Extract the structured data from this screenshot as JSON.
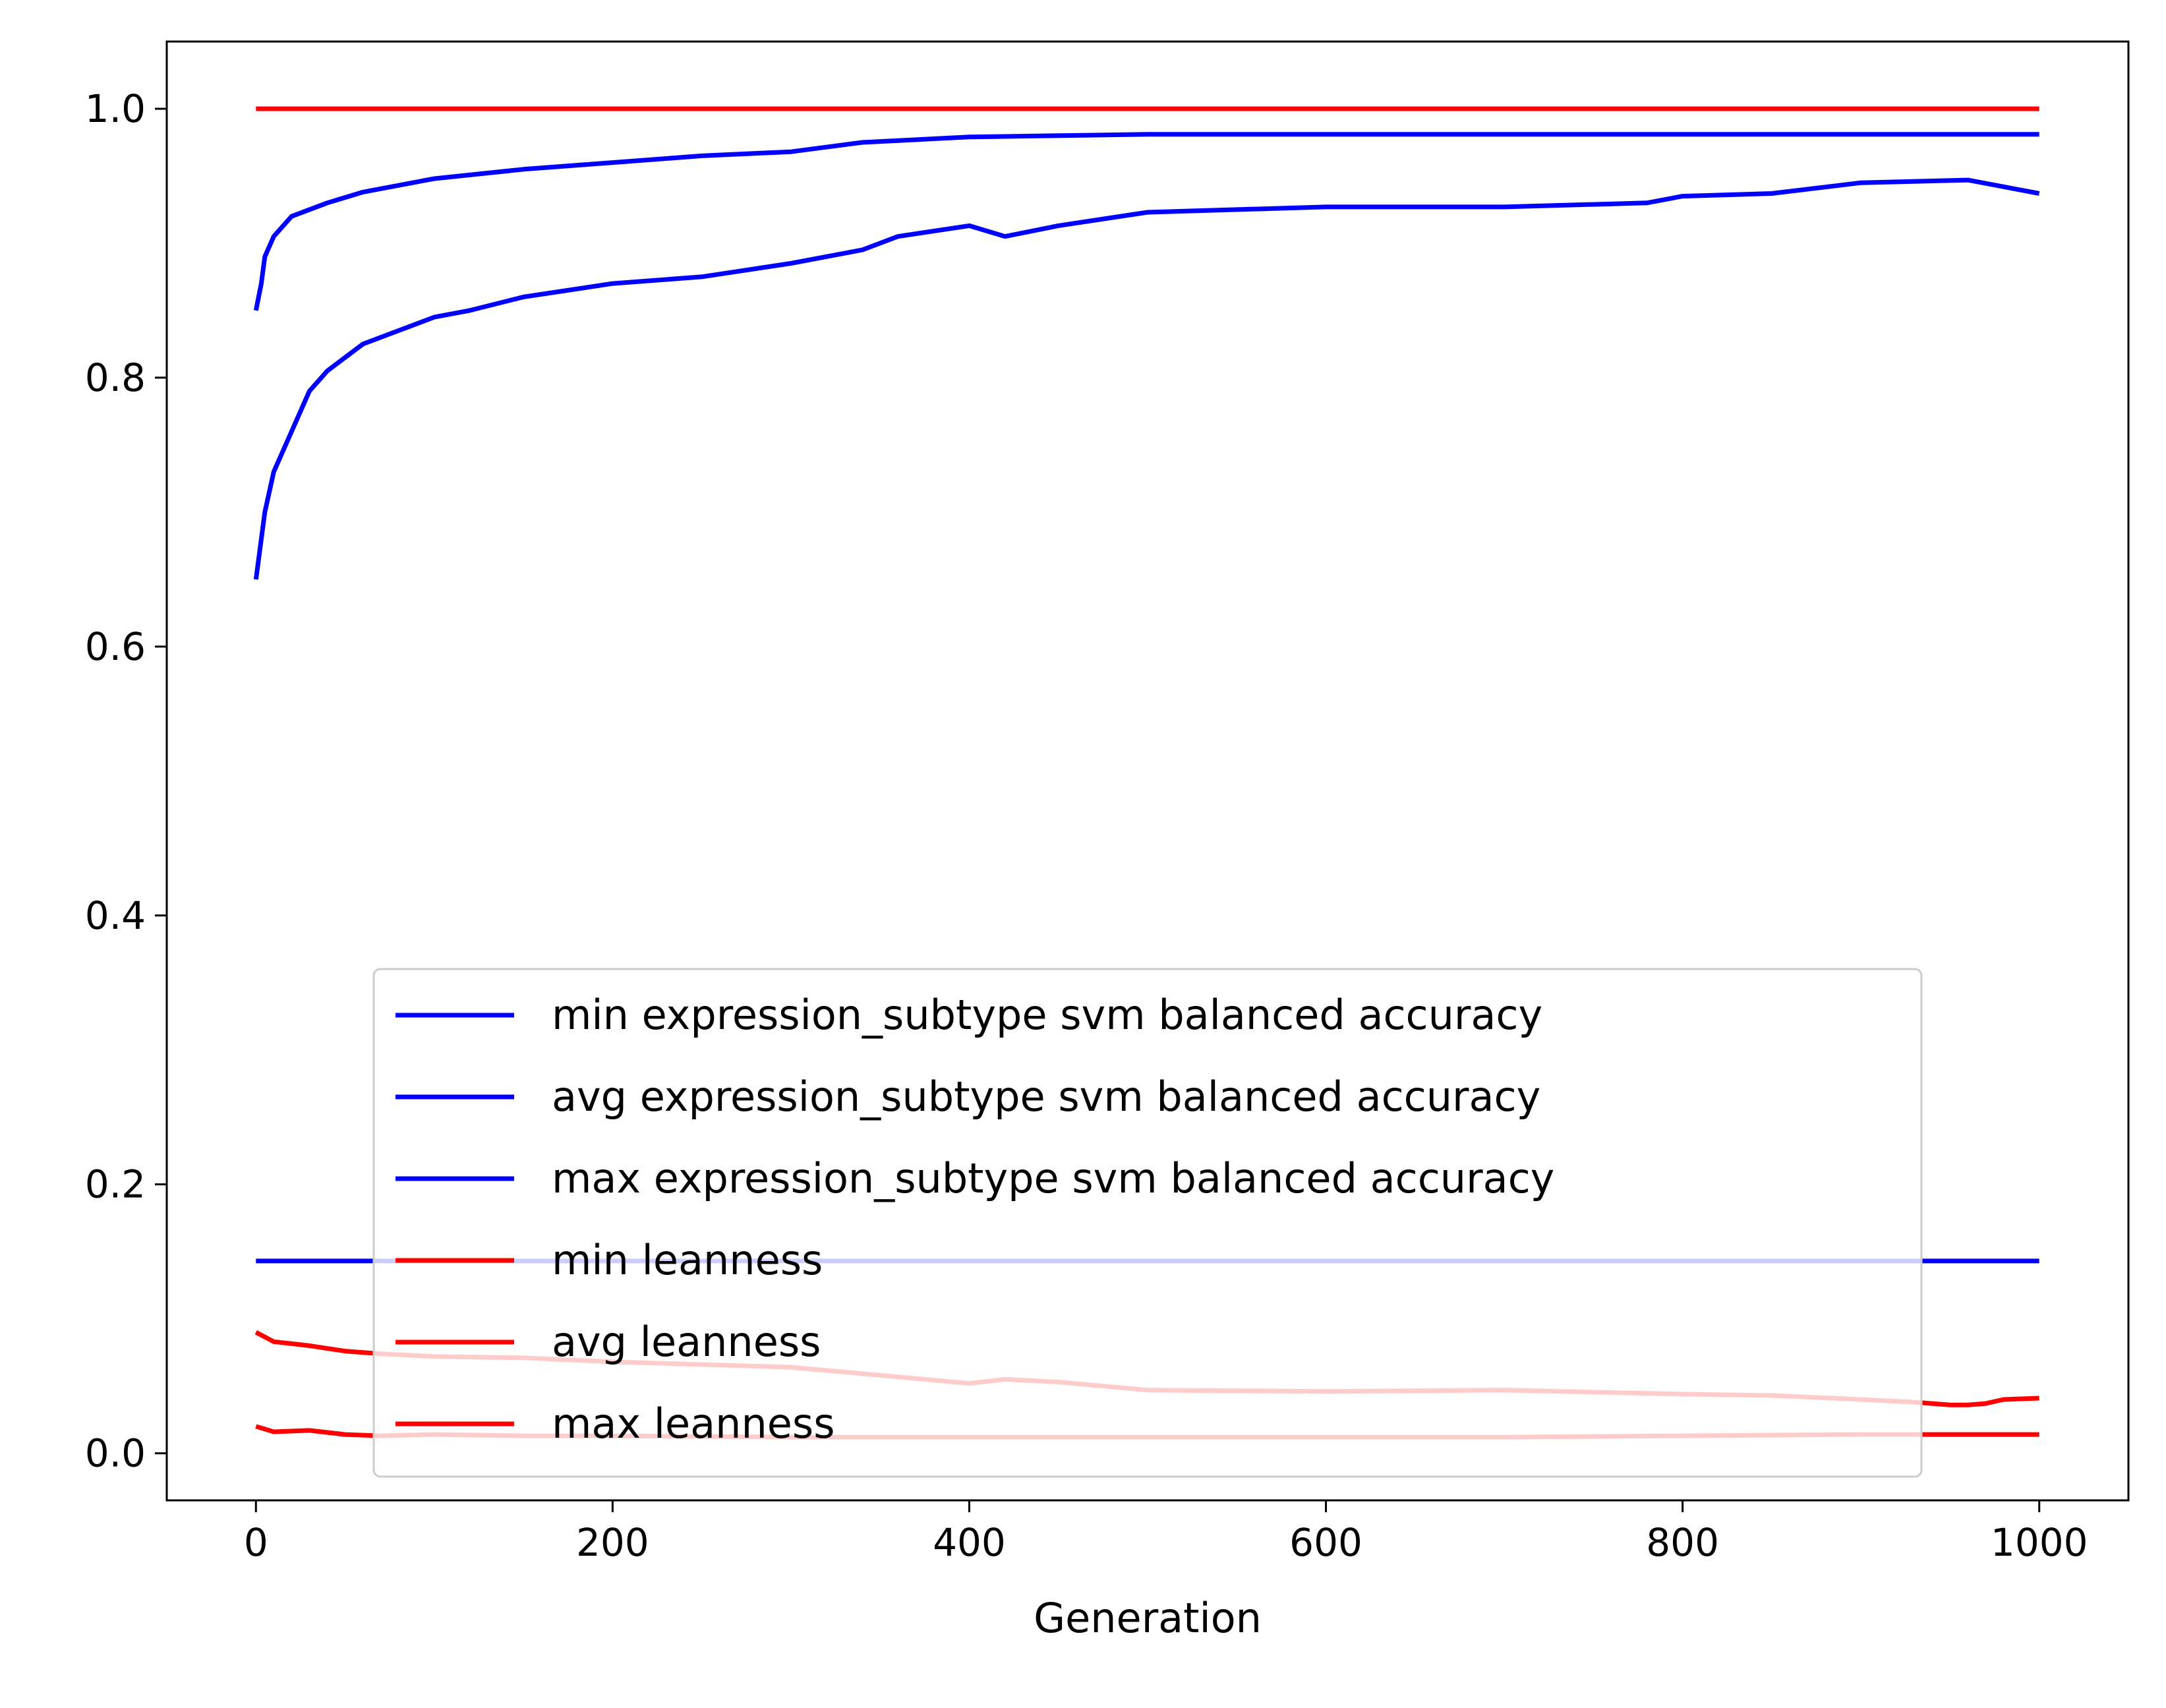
{
  "chart_data": {
    "type": "line",
    "title": "",
    "xlabel": "Generation",
    "ylabel": "",
    "xlim": [
      -50,
      1050
    ],
    "ylim": [
      -0.035,
      1.05
    ],
    "xticks": [
      0,
      200,
      400,
      600,
      800,
      1000
    ],
    "xtick_labels": [
      "0",
      "200",
      "400",
      "600",
      "800",
      "1000"
    ],
    "yticks": [
      0.0,
      0.2,
      0.4,
      0.6,
      0.8,
      1.0
    ],
    "ytick_labels": [
      "0.0",
      "0.2",
      "0.4",
      "0.6",
      "0.8",
      "1.0"
    ],
    "grid": false,
    "legend_position": "lower-center",
    "series": [
      {
        "name": "min expression_subtype svm balanced accuracy",
        "color": "#0000ff",
        "x": [
          0,
          1000
        ],
        "y": [
          0.143,
          0.143
        ]
      },
      {
        "name": "avg expression_subtype svm balanced accuracy",
        "color": "#0000ff",
        "x": [
          0,
          5,
          10,
          20,
          30,
          40,
          50,
          60,
          80,
          100,
          120,
          150,
          200,
          250,
          300,
          340,
          360,
          400,
          420,
          450,
          500,
          600,
          700,
          780,
          800,
          850,
          900,
          960,
          1000
        ],
        "y": [
          0.65,
          0.7,
          0.73,
          0.76,
          0.79,
          0.805,
          0.815,
          0.825,
          0.835,
          0.845,
          0.85,
          0.86,
          0.87,
          0.875,
          0.885,
          0.895,
          0.905,
          0.913,
          0.905,
          0.913,
          0.923,
          0.927,
          0.927,
          0.93,
          0.935,
          0.937,
          0.945,
          0.947,
          0.937
        ]
      },
      {
        "name": "max expression_subtype svm balanced accuracy",
        "color": "#0000ff",
        "x": [
          0,
          3,
          5,
          10,
          20,
          40,
          60,
          80,
          100,
          150,
          200,
          250,
          300,
          340,
          400,
          450,
          500,
          1000
        ],
        "y": [
          0.85,
          0.87,
          0.89,
          0.905,
          0.92,
          0.93,
          0.938,
          0.943,
          0.948,
          0.955,
          0.96,
          0.965,
          0.968,
          0.975,
          0.979,
          0.98,
          0.981,
          0.981
        ]
      },
      {
        "name": "min leanness",
        "color": "#ff0000",
        "x": [
          0,
          10,
          30,
          50,
          70,
          100,
          150,
          200,
          300,
          400,
          500,
          600,
          700,
          800,
          900,
          1000
        ],
        "y": [
          0.02,
          0.016,
          0.017,
          0.014,
          0.013,
          0.014,
          0.013,
          0.013,
          0.012,
          0.012,
          0.012,
          0.012,
          0.012,
          0.013,
          0.014,
          0.014
        ]
      },
      {
        "name": "avg leanness",
        "color": "#ff0000",
        "x": [
          0,
          10,
          30,
          50,
          70,
          100,
          150,
          200,
          300,
          350,
          400,
          420,
          450,
          500,
          600,
          700,
          800,
          850,
          900,
          930,
          950,
          960,
          970,
          980,
          1000
        ],
        "y": [
          0.09,
          0.083,
          0.08,
          0.076,
          0.074,
          0.072,
          0.071,
          0.068,
          0.064,
          0.058,
          0.052,
          0.055,
          0.053,
          0.047,
          0.046,
          0.047,
          0.044,
          0.043,
          0.04,
          0.038,
          0.036,
          0.036,
          0.037,
          0.04,
          0.041
        ]
      },
      {
        "name": "max leanness",
        "color": "#ff0000",
        "x": [
          0,
          1000
        ],
        "y": [
          1.0,
          1.0
        ]
      }
    ]
  }
}
